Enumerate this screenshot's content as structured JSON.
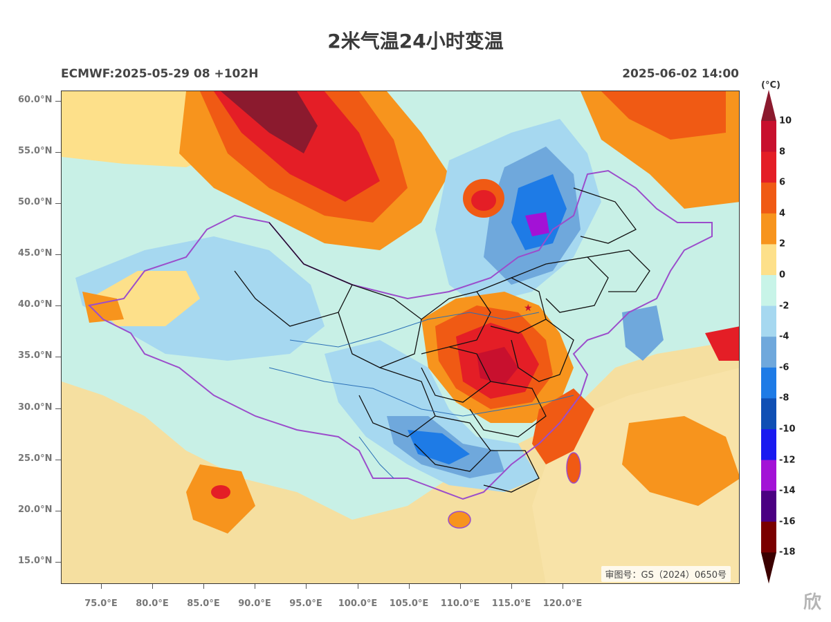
{
  "title": "2米气温24小时变温",
  "model_run": "ECMWF:2025-05-29 08 +102H",
  "valid_time": "2025-06-02 14:00",
  "review_number": "审图号：GS（2024）0650号",
  "watermark": "欣",
  "latitude_labels": [
    "60.0°N",
    "55.0°N",
    "50.0°N",
    "45.0°N",
    "40.0°N",
    "35.0°N",
    "30.0°N",
    "25.0°N",
    "20.0°N",
    "15.0°N"
  ],
  "longitude_labels": [
    "75.0°E",
    "80.0°E",
    "85.0°E",
    "90.0°E",
    "95.0°E",
    "100.0°E",
    "105.0°E",
    "110.0°E",
    "115.0°E",
    "120.0°E"
  ],
  "colorbar": {
    "unit": "(°C)",
    "levels": [
      "10",
      "8",
      "6",
      "4",
      "2",
      "0",
      "-2",
      "-4",
      "-6",
      "-8",
      "-10",
      "-12",
      "-14",
      "-16",
      "-18"
    ],
    "colors": [
      "#8b1a2e",
      "#c8102e",
      "#e41e26",
      "#f05a14",
      "#f7941d",
      "#fde08a",
      "#c8f4e8",
      "#a6d8f0",
      "#6fa8dc",
      "#1e7be6",
      "#0f4fb4",
      "#1a1af0",
      "#a312d6",
      "#4b0082",
      "#7a0000",
      "#3b0000"
    ]
  },
  "features": {
    "map_regions": [
      "temperature-field",
      "china-boundary",
      "province-boundaries",
      "rivers",
      "coastline"
    ]
  }
}
